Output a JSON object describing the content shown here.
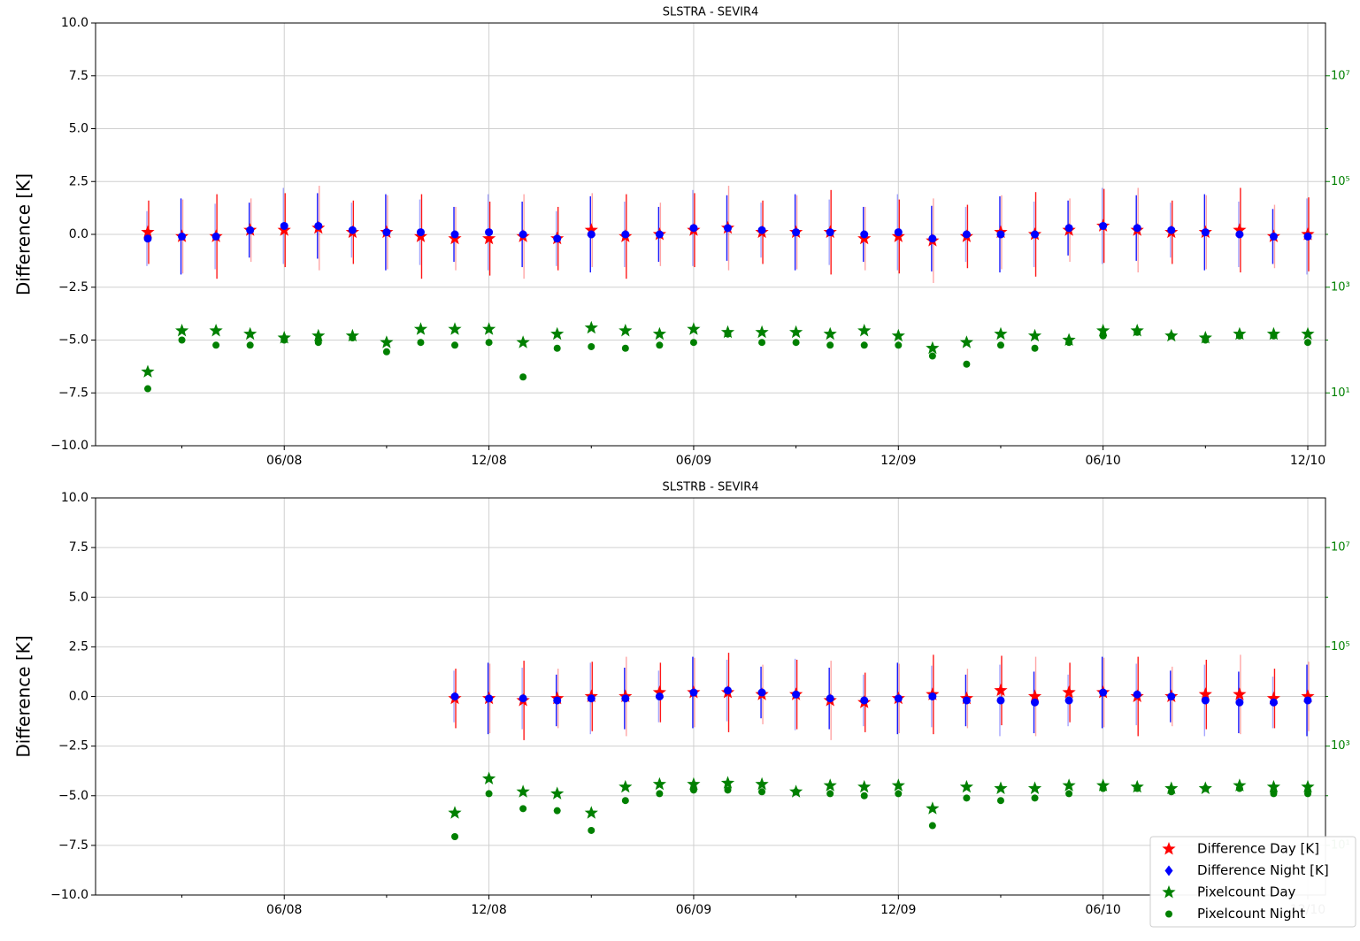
{
  "colors": {
    "diff_day": "#ff0000",
    "diff_night": "#0000ff",
    "pixel_day": "#008000",
    "pixel_night": "#008000",
    "grid": "#d0d0d0",
    "right_axis": "#008000"
  },
  "legend": {
    "position": "bottom-right",
    "entries": [
      "Difference Day [K]",
      "Difference Night [K]",
      "Pixelcount Day",
      "Pixelcount Night"
    ]
  },
  "chart_data": [
    {
      "type": "scatter",
      "title": "SLSTRA - SEVIR4",
      "ylabel": "Difference [K]",
      "ylim": [
        -10,
        10
      ],
      "y_ticks": [
        10.0,
        7.5,
        5.0,
        2.5,
        0.0,
        -2.5,
        -5.0,
        -7.5,
        -10.0
      ],
      "y2_scale": "log",
      "y2_ticks": [
        "10⁷",
        "10⁵",
        "10³",
        "10¹"
      ],
      "x_ticks": [
        "06/08",
        "12/08",
        "06/09",
        "12/09",
        "06/10",
        "12/10"
      ],
      "grid": true,
      "months": [
        "2018-02",
        "2018-03",
        "2018-04",
        "2018-05",
        "2018-06",
        "2018-07",
        "2018-08",
        "2018-09",
        "2018-10",
        "2018-11",
        "2018-12",
        "2019-01",
        "2019-02",
        "2019-03",
        "2019-04",
        "2019-05",
        "2019-06",
        "2019-07",
        "2019-08",
        "2019-09",
        "2019-10",
        "2019-11",
        "2019-12",
        "2020-01",
        "2020-02",
        "2020-03",
        "2020-04",
        "2020-05",
        "2020-06",
        "2020-07",
        "2020-08",
        "2020-09",
        "2020-10",
        "2020-11",
        "2020-12"
      ],
      "series": [
        {
          "name": "Difference Day [K]",
          "values": [
            0.1,
            -0.1,
            -0.1,
            0.2,
            0.2,
            0.3,
            0.1,
            0.1,
            -0.1,
            -0.2,
            -0.2,
            -0.1,
            -0.2,
            0.2,
            -0.1,
            0.0,
            0.2,
            0.3,
            0.1,
            0.1,
            0.1,
            -0.2,
            -0.1,
            -0.3,
            -0.1,
            0.1,
            0.0,
            0.2,
            0.4,
            0.2,
            0.1,
            0.1,
            0.2,
            -0.1,
            0.0
          ]
        },
        {
          "name": "Difference Night [K]",
          "values": [
            -0.2,
            -0.1,
            -0.1,
            0.2,
            0.4,
            0.4,
            0.2,
            0.1,
            0.1,
            0.0,
            0.1,
            0.0,
            -0.2,
            0.0,
            0.0,
            0.0,
            0.3,
            0.3,
            0.2,
            0.1,
            0.1,
            0.0,
            0.1,
            -0.2,
            0.0,
            0.0,
            0.0,
            0.3,
            0.4,
            0.3,
            0.2,
            0.1,
            0.0,
            -0.1,
            -0.1
          ]
        },
        {
          "name": "Pixelcount Day",
          "values": [
            25,
            150,
            150,
            130,
            110,
            120,
            120,
            90,
            160,
            160,
            160,
            90,
            130,
            170,
            150,
            130,
            160,
            140,
            140,
            140,
            130,
            150,
            120,
            70,
            90,
            130,
            120,
            100,
            150,
            150,
            120,
            110,
            130,
            130,
            130
          ]
        },
        {
          "name": "Pixelcount Night",
          "values": [
            12,
            100,
            80,
            80,
            100,
            90,
            110,
            60,
            90,
            80,
            90,
            20,
            70,
            75,
            70,
            80,
            90,
            130,
            90,
            90,
            80,
            80,
            80,
            50,
            35,
            80,
            70,
            90,
            120,
            140,
            120,
            100,
            120,
            120,
            90
          ]
        }
      ]
    },
    {
      "type": "scatter",
      "title": "SLSTRB - SEVIR4",
      "ylabel": "Difference [K]",
      "ylim": [
        -10,
        10
      ],
      "y_ticks": [
        10.0,
        7.5,
        5.0,
        2.5,
        0.0,
        -2.5,
        -5.0,
        -7.5,
        -10.0
      ],
      "y2_scale": "log",
      "y2_ticks": [
        "10⁷",
        "10⁵",
        "10³",
        "10¹"
      ],
      "x_ticks": [
        "06/08",
        "12/08",
        "06/09",
        "12/09",
        "06/10",
        "12/10"
      ],
      "grid": true,
      "months": [
        "2018-11",
        "2018-12",
        "2019-01",
        "2019-02",
        "2019-03",
        "2019-04",
        "2019-05",
        "2019-06",
        "2019-07",
        "2019-08",
        "2019-09",
        "2019-10",
        "2019-11",
        "2019-12",
        "2020-01",
        "2020-02",
        "2020-03",
        "2020-04",
        "2020-05",
        "2020-06",
        "2020-07",
        "2020-08",
        "2020-09",
        "2020-10",
        "2020-11",
        "2020-12"
      ],
      "series": [
        {
          "name": "Difference Day [K]",
          "values": [
            -0.1,
            -0.1,
            -0.2,
            -0.1,
            0.0,
            0.0,
            0.2,
            0.2,
            0.2,
            0.1,
            0.1,
            -0.2,
            -0.3,
            -0.1,
            0.1,
            -0.1,
            0.3,
            0.0,
            0.2,
            0.2,
            0.0,
            0.0,
            0.1,
            0.1,
            -0.1,
            0.0
          ]
        },
        {
          "name": "Difference Night [K]",
          "values": [
            0.0,
            -0.1,
            -0.1,
            -0.2,
            -0.1,
            -0.1,
            0.0,
            0.2,
            0.3,
            0.2,
            0.1,
            -0.1,
            -0.2,
            -0.1,
            0.0,
            -0.2,
            -0.2,
            -0.3,
            -0.2,
            0.2,
            0.1,
            0.0,
            -0.2,
            -0.3,
            -0.3,
            -0.2
          ]
        },
        {
          "name": "Pixelcount Day",
          "values": [
            45,
            220,
            120,
            110,
            45,
            150,
            170,
            170,
            180,
            170,
            120,
            160,
            150,
            160,
            55,
            150,
            140,
            140,
            160,
            160,
            150,
            140,
            140,
            160,
            150,
            150
          ]
        },
        {
          "name": "Pixelcount Night",
          "values": [
            15,
            110,
            55,
            50,
            20,
            80,
            110,
            130,
            130,
            120,
            120,
            110,
            100,
            110,
            25,
            90,
            80,
            90,
            110,
            140,
            140,
            120,
            140,
            140,
            110,
            110
          ]
        }
      ]
    }
  ]
}
